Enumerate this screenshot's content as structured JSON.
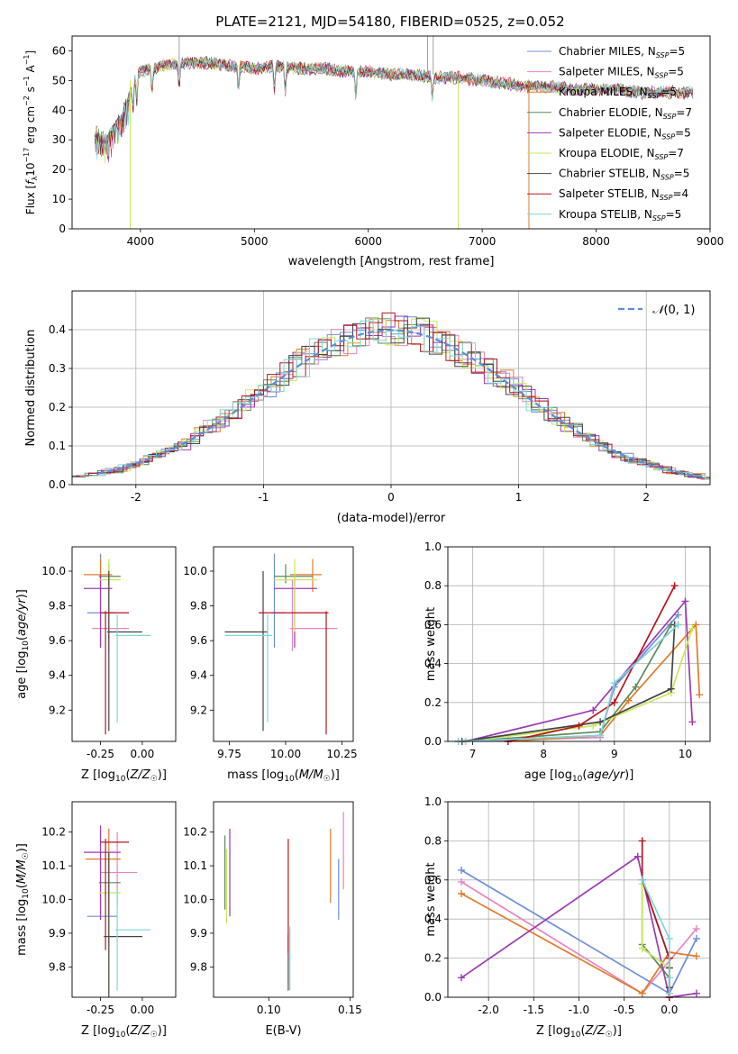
{
  "figure": {
    "title": "PLATE=2121, MJD=54180, FIBERID=0525, z=0.052"
  },
  "series": [
    {
      "name": "Chabrier MILES, N_SSP=5",
      "label_base": "Chabrier MILES, N",
      "label_sub": "SSP",
      "label_tail": "=5",
      "color": "#6b8fd8"
    },
    {
      "name": "Salpeter MILES, N_SSP=5",
      "label_base": "Salpeter MILES, N",
      "label_sub": "SSP",
      "label_tail": "=5",
      "color": "#e884c0"
    },
    {
      "name": "Kroupa MILES, N_SSP=5",
      "label_base": "Kroupa MILES, N",
      "label_sub": "SSP",
      "label_tail": "=5",
      "color": "#e07b2a"
    },
    {
      "name": "Chabrier ELODIE, N_SSP=7",
      "label_base": "Chabrier ELODIE, N",
      "label_sub": "SSP",
      "label_tail": "=7",
      "color": "#5e8a5e"
    },
    {
      "name": "Salpeter ELODIE, N_SSP=5",
      "label_base": "Salpeter ELODIE, N",
      "label_sub": "SSP",
      "label_tail": "=5",
      "color": "#9b3bb0"
    },
    {
      "name": "Kroupa ELODIE, N_SSP=7",
      "label_base": "Kroupa ELODIE, N",
      "label_sub": "SSP",
      "label_tail": "=7",
      "color": "#c8e85a"
    },
    {
      "name": "Chabrier STELIB, N_SSP=5",
      "label_base": "Chabrier STELIB, N",
      "label_sub": "SSP",
      "label_tail": "=5",
      "color": "#444444"
    },
    {
      "name": "Salpeter STELIB, N_SSP=4",
      "label_base": "Salpeter STELIB, N",
      "label_sub": "SSP",
      "label_tail": "=4",
      "color": "#b5161e"
    },
    {
      "name": "Kroupa STELIB, N_SSP=5",
      "label_base": "Kroupa STELIB, N",
      "label_sub": "SSP",
      "label_tail": "=5",
      "color": "#7fd6d6"
    }
  ],
  "chart_data": [
    {
      "id": "spectrum",
      "type": "line",
      "xlabel": "wavelength [Angstrom, rest frame]",
      "ylabel": "Flux [f_λ10^-17 erg cm^-2 s^-1 A^-1]",
      "xlim": [
        3400,
        9000
      ],
      "ylim": [
        0,
        65
      ],
      "xticks": [
        4000,
        5000,
        6000,
        7000,
        8000,
        9000
      ],
      "yticks": [
        0,
        10,
        20,
        30,
        40,
        50,
        60
      ],
      "grid": false,
      "legend": "right",
      "continuum": {
        "x": [
          3600,
          3700,
          3800,
          3900,
          3950,
          4000,
          4100,
          4200,
          4400,
          4600,
          4800,
          5000,
          5200,
          5400,
          5600,
          5800,
          6000,
          6200,
          6400,
          6600,
          6800,
          7000,
          7200,
          7400,
          7600,
          7800,
          8000,
          8200,
          8400,
          8600,
          8800
        ],
        "y": [
          33,
          30,
          36,
          44,
          50,
          53,
          54,
          55,
          56,
          56,
          55,
          54,
          55,
          54,
          54,
          53,
          53,
          52,
          52,
          51,
          51,
          50,
          49,
          48,
          48,
          47,
          47,
          47,
          46,
          46,
          46
        ]
      }
    },
    {
      "id": "residuals",
      "type": "histogram",
      "xlabel": "(data-model)/error",
      "ylabel": "Normed distribution",
      "xlim": [
        -2.5,
        2.5
      ],
      "ylim": [
        0,
        0.5
      ],
      "xticks": [
        -2,
        -1,
        0,
        1,
        2
      ],
      "yticks": [
        0.0,
        0.1,
        0.2,
        0.3,
        0.4
      ],
      "grid": true,
      "legend": "top-right",
      "reference_label": "N(0,1)",
      "bin_width": 0.1
    },
    {
      "id": "age_vs_Z",
      "type": "scatter",
      "xlabel": "Z [log10(Z/Z☉)]",
      "ylabel": "age [log10(age/yr)]",
      "xlim": [
        -0.42,
        0.2
      ],
      "ylim": [
        9.02,
        10.14
      ],
      "xticks": [
        -0.25,
        0.0
      ],
      "yticks": [
        9.2,
        9.4,
        9.6,
        9.8,
        10.0
      ],
      "points": [
        {
          "x": -0.25,
          "y": 9.76,
          "xerr": [
            0.08,
            0.1
          ],
          "yerr": [
            0.2,
            0.34
          ]
        },
        {
          "x": -0.2,
          "y": 9.67,
          "xerr": [
            0.1,
            0.12
          ],
          "yerr": [
            0.13,
            0.28
          ]
        },
        {
          "x": -0.25,
          "y": 9.98,
          "xerr": [
            0.1,
            0.07
          ],
          "yerr": [
            0.1,
            0.09
          ]
        },
        {
          "x": -0.2,
          "y": 9.97,
          "xerr": [
            0.06,
            0.07
          ],
          "yerr": [
            0.04,
            0.07
          ]
        },
        {
          "x": -0.25,
          "y": 9.9,
          "xerr": [
            0.1,
            0.07
          ],
          "yerr": [
            0.34,
            0.08
          ]
        },
        {
          "x": -0.2,
          "y": 9.95,
          "xerr": [
            0.06,
            0.07
          ],
          "yerr": [
            0.3,
            0.12
          ]
        },
        {
          "x": -0.2,
          "y": 9.65,
          "xerr": [
            0.01,
            0.2
          ],
          "yerr": [
            0.57,
            0.35
          ]
        },
        {
          "x": -0.22,
          "y": 9.76,
          "xerr": [
            0.03,
            0.14
          ],
          "yerr": [
            0.7,
            0.01
          ]
        },
        {
          "x": -0.15,
          "y": 9.63,
          "xerr": [
            0.01,
            0.2
          ],
          "yerr": [
            0.5,
            0.12
          ]
        }
      ]
    },
    {
      "id": "age_vs_mass",
      "type": "scatter",
      "xlabel": "mass [log10(M/M☉)]",
      "ylabel": "",
      "xlim": [
        9.68,
        10.3
      ],
      "ylim": [
        9.02,
        10.14
      ],
      "xticks": [
        9.75,
        10.0,
        10.25
      ],
      "yticks": [
        9.2,
        9.4,
        9.6,
        9.8,
        10.0
      ],
      "points": [
        {
          "x": 9.95,
          "y": 9.76,
          "xerr": [
            0.01,
            0.05
          ],
          "yerr": [
            0.2,
            0.34
          ]
        },
        {
          "x": 10.03,
          "y": 9.67,
          "xerr": [
            0.01,
            0.2
          ],
          "yerr": [
            0.13,
            0.28
          ]
        },
        {
          "x": 10.12,
          "y": 9.98,
          "xerr": [
            0.1,
            0.04
          ],
          "yerr": [
            0.1,
            0.09
          ]
        },
        {
          "x": 10.0,
          "y": 9.97,
          "xerr": [
            0.05,
            0.12
          ],
          "yerr": [
            0.04,
            0.07
          ]
        },
        {
          "x": 10.04,
          "y": 9.9,
          "xerr": [
            0.09,
            0.1
          ],
          "yerr": [
            0.34,
            0.08
          ]
        },
        {
          "x": 10.04,
          "y": 9.95,
          "xerr": [
            0.09,
            0.1
          ],
          "yerr": [
            0.3,
            0.12
          ]
        },
        {
          "x": 9.9,
          "y": 9.65,
          "xerr": [
            0.17,
            0.02
          ],
          "yerr": [
            0.57,
            0.35
          ]
        },
        {
          "x": 10.18,
          "y": 9.76,
          "xerr": [
            0.3,
            0.01
          ],
          "yerr": [
            0.7,
            0.01
          ]
        },
        {
          "x": 9.92,
          "y": 9.63,
          "xerr": [
            0.19,
            0.02
          ],
          "yerr": [
            0.5,
            0.12
          ]
        }
      ]
    },
    {
      "id": "weight_vs_age",
      "type": "line",
      "xlabel": "age [log10(age/yr)]",
      "ylabel": "mass weight",
      "xlim": [
        6.65,
        10.35
      ],
      "ylim": [
        0,
        1.0
      ],
      "xticks": [
        7,
        8,
        9,
        10
      ],
      "yticks": [
        0.0,
        0.2,
        0.4,
        0.6,
        0.8,
        1.0
      ],
      "grid": true,
      "series_points": [
        {
          "x": [
            6.8,
            8.8,
            9.0,
            9.9
          ],
          "y": [
            0.0,
            0.03,
            0.28,
            0.65
          ]
        },
        {
          "x": [
            6.8,
            8.8,
            9.0,
            9.9
          ],
          "y": [
            0.0,
            0.02,
            0.3,
            0.6
          ]
        },
        {
          "x": [
            7.5,
            8.8,
            9.2,
            10.15,
            10.2
          ],
          "y": [
            0.0,
            0.03,
            0.21,
            0.6,
            0.24
          ]
        },
        {
          "x": [
            6.9,
            8.8,
            9.3,
            9.8
          ],
          "y": [
            0.0,
            0.05,
            0.28,
            0.6
          ]
        },
        {
          "x": [
            6.9,
            8.7,
            10.0,
            10.1
          ],
          "y": [
            0.0,
            0.16,
            0.72,
            0.1
          ]
        },
        {
          "x": [
            6.9,
            8.7,
            9.8,
            10.1
          ],
          "y": [
            0.0,
            0.08,
            0.25,
            0.58
          ]
        },
        {
          "x": [
            6.85,
            8.8,
            9.8,
            9.85
          ],
          "y": [
            0.0,
            0.1,
            0.27,
            0.6
          ]
        },
        {
          "x": [
            7.5,
            8.5,
            9.0,
            9.85
          ],
          "y": [
            0.0,
            0.08,
            0.2,
            0.8
          ]
        },
        {
          "x": [
            6.8,
            8.8,
            9.0,
            9.9
          ],
          "y": [
            0.0,
            0.03,
            0.3,
            0.6
          ]
        }
      ]
    },
    {
      "id": "mass_vs_Z",
      "type": "scatter",
      "xlabel": "Z [log10(Z/Z☉)]",
      "ylabel": "mass [log10(M/M☉)]",
      "xlim": [
        -0.42,
        0.2
      ],
      "ylim": [
        9.71,
        10.29
      ],
      "xticks": [
        -0.25,
        0.0
      ],
      "yticks": [
        9.8,
        9.9,
        10.0,
        10.1,
        10.2
      ],
      "points": [
        {
          "x": -0.25,
          "y": 9.95,
          "xerr": [
            0.08,
            0.1
          ],
          "yerr": [
            0.01,
            0.25
          ]
        },
        {
          "x": -0.15,
          "y": 10.08,
          "xerr": [
            0.1,
            0.12
          ],
          "yerr": [
            0.1,
            0.12
          ]
        },
        {
          "x": -0.2,
          "y": 10.12,
          "xerr": [
            0.14,
            0.07
          ],
          "yerr": [
            0.13,
            0.09
          ]
        },
        {
          "x": -0.2,
          "y": 10.05,
          "xerr": [
            0.06,
            0.07
          ],
          "yerr": [
            0.1,
            0.07
          ]
        },
        {
          "x": -0.25,
          "y": 10.14,
          "xerr": [
            0.1,
            0.12
          ],
          "yerr": [
            0.2,
            0.08
          ]
        },
        {
          "x": -0.2,
          "y": 10.02,
          "xerr": [
            0.06,
            0.07
          ],
          "yerr": [
            0.3,
            0.12
          ]
        },
        {
          "x": -0.2,
          "y": 9.89,
          "xerr": [
            0.03,
            0.2
          ],
          "yerr": [
            0.22,
            0.25
          ]
        },
        {
          "x": -0.22,
          "y": 10.17,
          "xerr": [
            0.03,
            0.14
          ],
          "yerr": [
            0.32,
            0.01
          ]
        },
        {
          "x": -0.15,
          "y": 9.91,
          "xerr": [
            0.01,
            0.2
          ],
          "yerr": [
            0.18,
            0.12
          ]
        }
      ]
    },
    {
      "id": "mass_vs_ebv",
      "type": "scatter",
      "xlabel": "E(B-V)",
      "ylabel": "",
      "xlim": [
        0.066,
        0.152
      ],
      "ylim": [
        9.71,
        10.29
      ],
      "xticks": [
        0.1,
        0.15
      ],
      "yticks": [
        9.8,
        9.9,
        10.0,
        10.1,
        10.2
      ],
      "points": [
        {
          "x": 0.143,
          "y": 10.05,
          "yerr": [
            0.11,
            0.07
          ]
        },
        {
          "x": 0.146,
          "y": 10.1,
          "yerr": [
            0.07,
            0.16
          ]
        },
        {
          "x": 0.138,
          "y": 10.1,
          "yerr": [
            0.11,
            0.11
          ]
        },
        {
          "x": 0.073,
          "y": 10.07,
          "yerr": [
            0.1,
            0.12
          ]
        },
        {
          "x": 0.076,
          "y": 10.07,
          "yerr": [
            0.12,
            0.14
          ]
        },
        {
          "x": 0.074,
          "y": 10.05,
          "yerr": [
            0.12,
            0.1
          ]
        },
        {
          "x": 0.112,
          "y": 9.84,
          "yerr": [
            0.11,
            0.06
          ]
        },
        {
          "x": 0.112,
          "y": 10.05,
          "yerr": [
            0.21,
            0.13
          ]
        },
        {
          "x": 0.113,
          "y": 9.82,
          "yerr": [
            0.09,
            0.1
          ]
        }
      ]
    },
    {
      "id": "weight_vs_Z",
      "type": "line",
      "xlabel": "Z [log10(Z/Z☉)]",
      "ylabel": "mass weight",
      "xlim": [
        -2.45,
        0.45
      ],
      "ylim": [
        0,
        1.0
      ],
      "xticks": [
        -2.0,
        -1.5,
        -1.0,
        -0.5,
        0.0
      ],
      "yticks": [
        0.0,
        0.2,
        0.4,
        0.6,
        0.8,
        1.0
      ],
      "grid": true,
      "series_points": [
        {
          "x": [
            -2.3,
            0.0,
            0.3
          ],
          "y": [
            0.65,
            0.02,
            0.3
          ]
        },
        {
          "x": [
            -2.3,
            -0.3,
            0.3
          ],
          "y": [
            0.59,
            0.02,
            0.35
          ]
        },
        {
          "x": [
            -2.3,
            -0.3,
            0.0,
            0.3
          ],
          "y": [
            0.53,
            0.02,
            0.23,
            0.21
          ]
        },
        {
          "x": [
            -0.3,
            -0.3,
            0.0,
            0.0
          ],
          "y": [
            0.6,
            0.27,
            0.1,
            0.02
          ]
        },
        {
          "x": [
            -2.3,
            -0.35,
            0.0,
            0.3
          ],
          "y": [
            0.1,
            0.72,
            0.0,
            0.02
          ]
        },
        {
          "x": [
            -0.3,
            -0.3,
            0.0,
            0.0
          ],
          "y": [
            0.58,
            0.25,
            0.15,
            0.02
          ]
        },
        {
          "x": [
            -0.3,
            0.0,
            0.0,
            0.0
          ],
          "y": [
            0.6,
            0.2,
            0.05,
            0.15
          ]
        },
        {
          "x": [
            -0.3,
            -0.3,
            0.0,
            0.0
          ],
          "y": [
            0.8,
            0.6,
            0.2,
            0.0
          ]
        },
        {
          "x": [
            -0.3,
            0.0,
            0.0,
            0.0
          ],
          "y": [
            0.6,
            0.3,
            0.02,
            0.1
          ]
        }
      ]
    }
  ]
}
